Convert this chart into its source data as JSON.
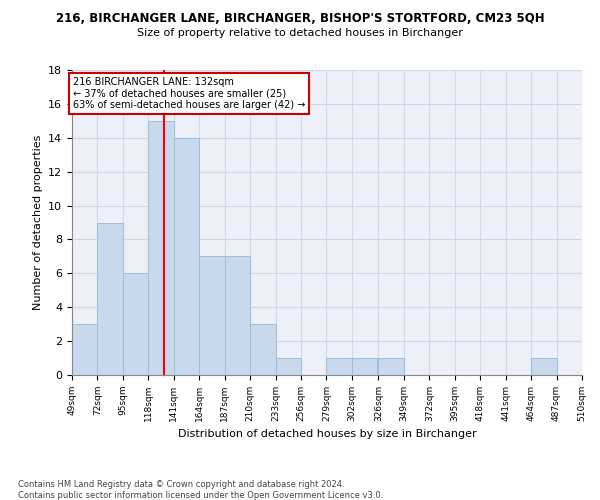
{
  "title": "216, BIRCHANGER LANE, BIRCHANGER, BISHOP'S STORTFORD, CM23 5QH",
  "subtitle": "Size of property relative to detached houses in Birchanger",
  "xlabel": "Distribution of detached houses by size in Birchanger",
  "ylabel": "Number of detached properties",
  "bins": [
    49,
    72,
    95,
    118,
    141,
    164,
    187,
    210,
    233,
    256,
    279,
    302,
    326,
    349,
    372,
    395,
    418,
    441,
    464,
    487,
    510
  ],
  "counts": [
    3,
    9,
    6,
    15,
    14,
    7,
    7,
    3,
    1,
    0,
    1,
    1,
    1,
    0,
    0,
    0,
    0,
    0,
    1,
    0
  ],
  "bar_color": "#c8d9ee",
  "bar_edge_color": "#a0bcd8",
  "red_line_x": 132,
  "annotation_title": "216 BIRCHANGER LANE: 132sqm",
  "annotation_line1": "← 37% of detached houses are smaller (25)",
  "annotation_line2": "63% of semi-detached houses are larger (42) →",
  "annotation_box_color": "#ffffff",
  "annotation_box_edge": "#cc0000",
  "footnote1": "Contains HM Land Registry data © Crown copyright and database right 2024.",
  "footnote2": "Contains public sector information licensed under the Open Government Licence v3.0.",
  "ylim": [
    0,
    18
  ],
  "yticks": [
    0,
    2,
    4,
    6,
    8,
    10,
    12,
    14,
    16,
    18
  ],
  "grid_color": "#d0d8e8",
  "background_color": "#edf0f8"
}
